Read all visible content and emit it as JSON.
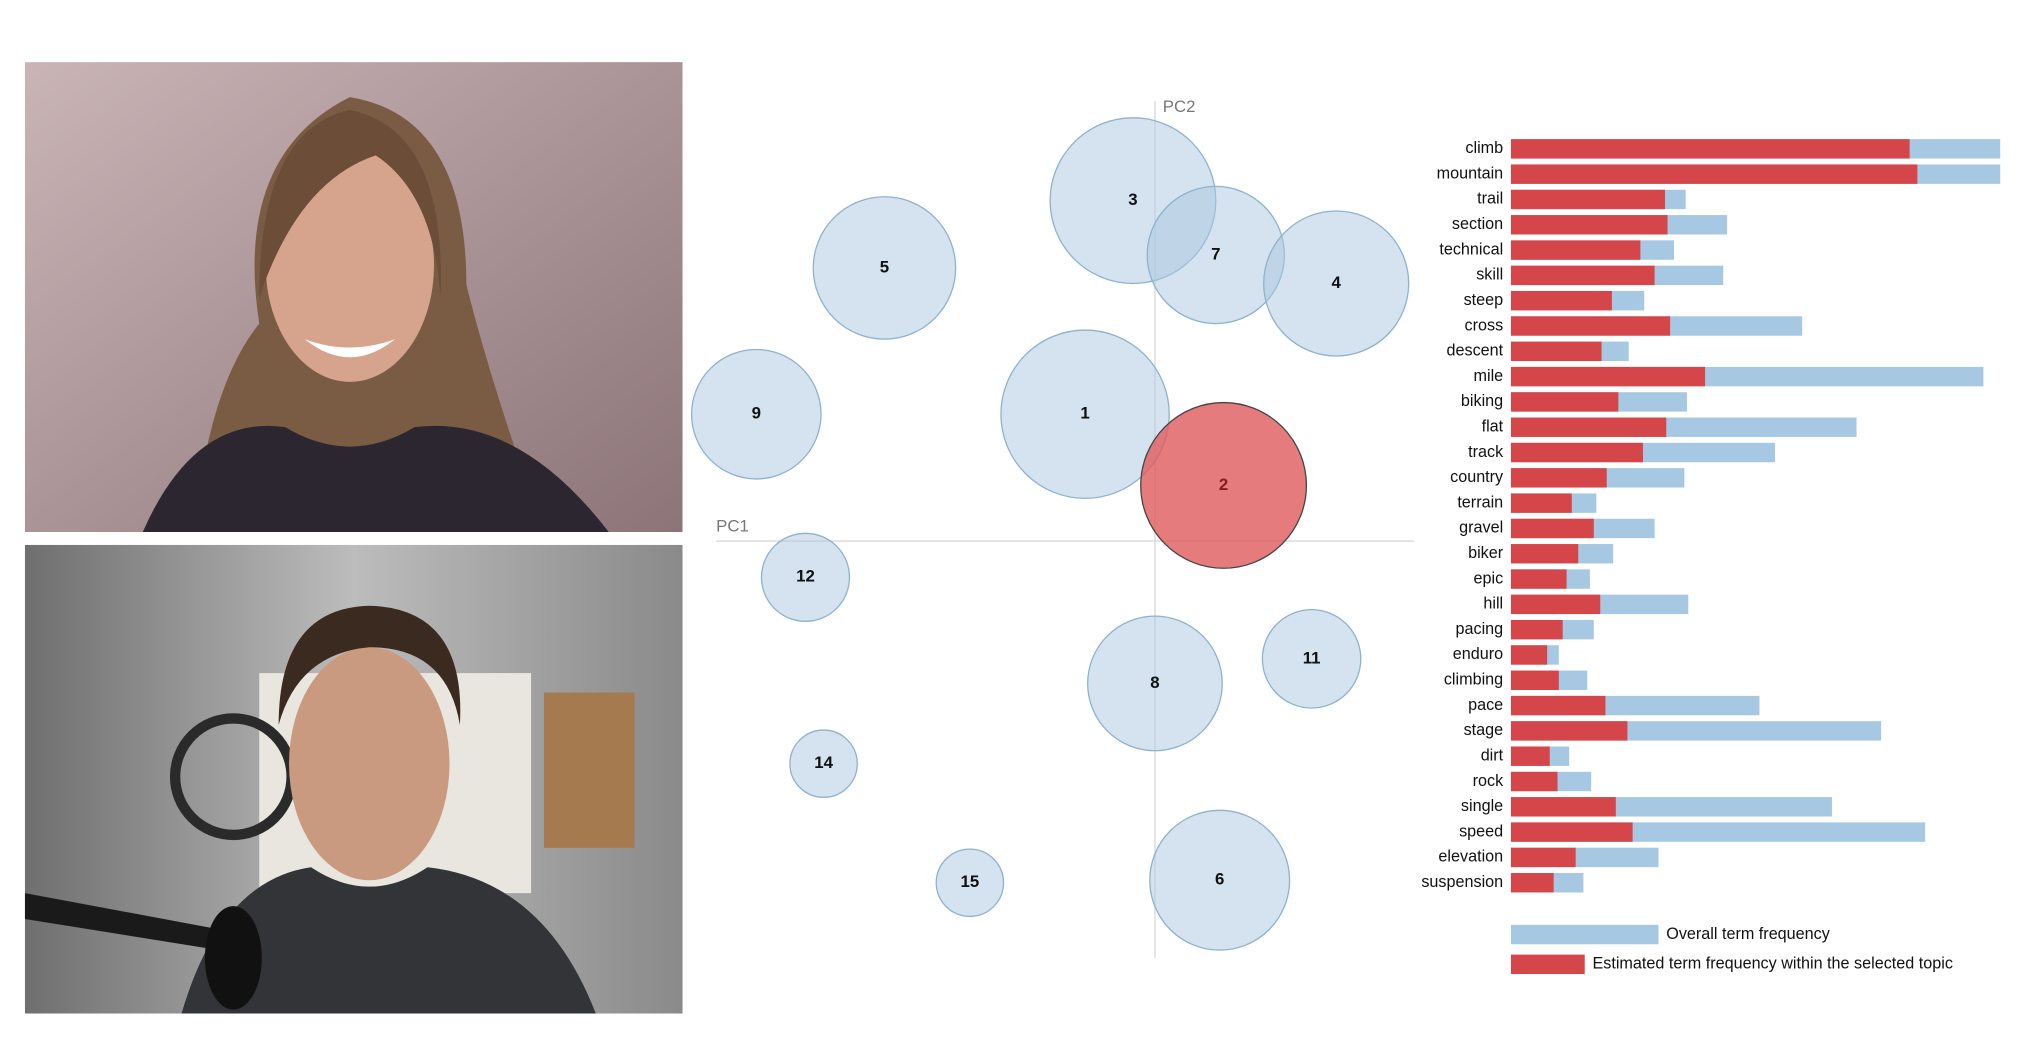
{
  "chart_data": [
    {
      "type": "scatter",
      "x_label": "PC1",
      "y_label": "PC2",
      "labels": [
        "3",
        "7",
        "4",
        "5",
        "9",
        "1",
        "2",
        "12",
        "8",
        "11",
        "14",
        "15",
        "6"
      ],
      "x": [
        -17,
        47,
        140,
        -209,
        -308,
        -54,
        53,
        -270,
        0,
        121,
        -256,
        -143,
        50
      ],
      "y": [
        263,
        221,
        199,
        211,
        98,
        98,
        43,
        -28,
        -110,
        -91,
        -172,
        -264,
        -262
      ],
      "sizes": [
        64,
        53,
        56,
        55,
        50,
        65,
        64,
        34,
        52,
        38,
        26,
        26,
        54
      ],
      "colors": [
        "#a9c8df",
        "#a9c8df",
        "#a9c8df",
        "#a9c8df",
        "#a9c8df",
        "#a9c8df",
        "#e05a5c",
        "#a9c8df",
        "#a9c8df",
        "#a9c8df",
        "#a9c8df",
        "#a9c8df",
        "#a9c8df"
      ],
      "xlim": [
        -339,
        200
      ],
      "ylim": [
        -322,
        340
      ]
    },
    {
      "type": "bar",
      "orientation": "horizontal",
      "categories": [
        "climb",
        "mountain",
        "trail",
        "section",
        "technical",
        "skill",
        "steep",
        "cross",
        "descent",
        "mile",
        "biking",
        "flat",
        "track",
        "country",
        "terrain",
        "gravel",
        "biker",
        "epic",
        "hill",
        "pacing",
        "enduro",
        "climbing",
        "pace",
        "stage",
        "dirt",
        "rock",
        "single",
        "speed",
        "elevation",
        "suspension"
      ],
      "series": [
        {
          "name": "Overall term frequency",
          "color": "#a6c8e2",
          "values": [
            378,
            378,
            135,
            167,
            126,
            164,
            103,
            225,
            91,
            365,
            136,
            267,
            204,
            134,
            66,
            111,
            79,
            61,
            137,
            64,
            37,
            59,
            192,
            286,
            45,
            62,
            248,
            320,
            114,
            56
          ]
        },
        {
          "name": "Estimated term frequency within the selected topic",
          "color": "#d5464a",
          "values": [
            308,
            314,
            119,
            121,
            100,
            111,
            78,
            123,
            70,
            150,
            83,
            120,
            102,
            74,
            47,
            64,
            52,
            43,
            69,
            40,
            28,
            37,
            73,
            90,
            30,
            36,
            81,
            94,
            50,
            33
          ]
        }
      ],
      "xlim": [
        0,
        378
      ]
    }
  ]
}
